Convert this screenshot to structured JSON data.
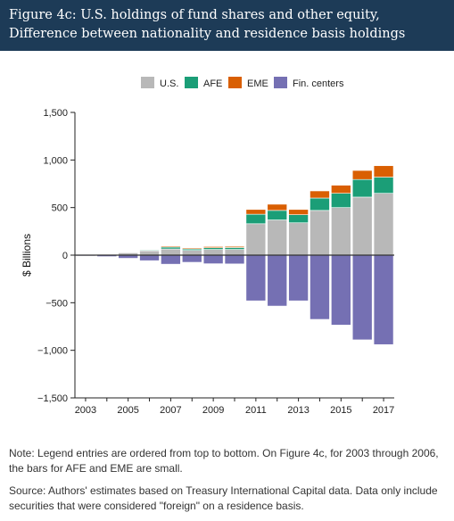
{
  "header": {
    "title": "Figure 4c: U.S. holdings of fund shares and other equity, Difference between nationality and residence basis holdings"
  },
  "chart_data": {
    "type": "bar",
    "stacked": true,
    "diverging": true,
    "title": "",
    "xlabel": "",
    "ylabel": "$ Billions",
    "ylim": [
      -1500,
      1500
    ],
    "yticks": [
      -1500,
      -1000,
      -500,
      0,
      500,
      1000,
      1500
    ],
    "ytick_labels": [
      "−1,500",
      "−1,000",
      "−500",
      "0",
      "500",
      "1,000",
      "1,500"
    ],
    "xtick_labels": [
      "2003",
      "2005",
      "2007",
      "2009",
      "2011",
      "2013",
      "2015",
      "2017"
    ],
    "legend_position": "top",
    "categories": [
      "2003",
      "2004",
      "2005",
      "2006",
      "2007",
      "2008",
      "2009",
      "2010",
      "2011",
      "2012",
      "2013",
      "2014",
      "2015",
      "2016",
      "2017"
    ],
    "series": [
      {
        "name": "U.S.",
        "color": "#b8b8b8",
        "values": [
          6,
          10,
          25,
          45,
          65,
          50,
          60,
          60,
          330,
          370,
          340,
          470,
          500,
          610,
          650
        ]
      },
      {
        "name": "AFE",
        "color": "#1b9e77",
        "values": [
          2,
          3,
          5,
          8,
          20,
          15,
          18,
          20,
          100,
          100,
          85,
          130,
          150,
          185,
          170
        ]
      },
      {
        "name": "EME",
        "color": "#d95f02",
        "values": [
          1,
          2,
          3,
          5,
          10,
          10,
          12,
          12,
          50,
          65,
          55,
          75,
          85,
          95,
          120
        ]
      },
      {
        "name": "Fin. centers",
        "color": "#7570b3",
        "values": [
          -9,
          -15,
          -33,
          -58,
          -95,
          -75,
          -90,
          -92,
          -480,
          -535,
          -480,
          -675,
          -735,
          -890,
          -940
        ]
      }
    ]
  },
  "notes": {
    "note": "Note: Legend entries are ordered from top to bottom. On Figure 4c, for 2003 through 2006, the bars for AFE and EME are small.",
    "source": "Source: Authors' estimates based on Treasury International Capital data. Data only include securities that were considered \"foreign\" on a residence basis."
  }
}
